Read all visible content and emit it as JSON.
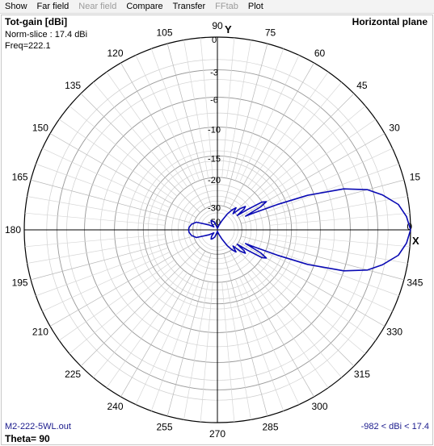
{
  "menu": [
    {
      "label": "Show",
      "enabled": true
    },
    {
      "label": "Far field",
      "enabled": true
    },
    {
      "label": "Near field",
      "enabled": false
    },
    {
      "label": "Compare",
      "enabled": true
    },
    {
      "label": "Transfer",
      "enabled": true
    },
    {
      "label": "FFtab",
      "enabled": false
    },
    {
      "label": "Plot",
      "enabled": true
    }
  ],
  "header": {
    "title": "Tot-gain [dBi]",
    "norm": "Norm-slice : 17.4 dBi",
    "freq": "Freq=222.1",
    "plane": "Horizontal plane"
  },
  "footer": {
    "file": "M2-222-5WL.out",
    "theta": "Theta= 90",
    "range": "-982 < dBi < 17.4"
  },
  "axes": {
    "y_label": "Y",
    "x_label": "X"
  },
  "colors": {
    "pattern": "#0a0ab4",
    "grid": "#b4b4b4",
    "axis": "#000000",
    "text_blue": "#1a1a8c"
  },
  "chart_data": {
    "type": "polar",
    "angle_labels": [
      "0",
      "15",
      "30",
      "45",
      "60",
      "75",
      "90",
      "105",
      "120",
      "135",
      "150",
      "165",
      "180",
      "195",
      "210",
      "225",
      "240",
      "255",
      "270",
      "285",
      "300",
      "315",
      "330",
      "345"
    ],
    "ring_labels": [
      "0",
      "-3",
      "-6",
      "-10",
      "-15",
      "-20",
      "-30",
      "-50"
    ],
    "ring_values_db": [
      0,
      -3,
      -6,
      -10,
      -15,
      -20,
      -30,
      -50
    ],
    "rlim_db": [
      -50,
      0
    ],
    "series": [
      {
        "points_deg_db": [
          [
            0,
            0
          ],
          [
            4,
            -0.3
          ],
          [
            8,
            -0.9
          ],
          [
            12,
            -2.2
          ],
          [
            15,
            -3.5
          ],
          [
            18,
            -6
          ],
          [
            21,
            -11
          ],
          [
            23,
            -17
          ],
          [
            25,
            -24
          ],
          [
            26,
            -27
          ],
          [
            28,
            -21
          ],
          [
            30,
            -19
          ],
          [
            32,
            -20
          ],
          [
            34,
            -25
          ],
          [
            36,
            -30
          ],
          [
            38,
            -26
          ],
          [
            40,
            -25
          ],
          [
            43,
            -27
          ],
          [
            46,
            -31
          ],
          [
            50,
            -28
          ],
          [
            54,
            -30
          ],
          [
            58,
            -33
          ],
          [
            64,
            -39
          ],
          [
            72,
            -44
          ],
          [
            82,
            -47
          ],
          [
            90,
            -48
          ],
          [
            100,
            -46
          ],
          [
            110,
            -41
          ],
          [
            118,
            -39
          ],
          [
            124,
            -38
          ],
          [
            132,
            -40
          ],
          [
            140,
            -44
          ],
          [
            150,
            -39
          ],
          [
            160,
            -31
          ],
          [
            168,
            -29
          ],
          [
            175,
            -28.2
          ],
          [
            180,
            -28
          ],
          [
            185,
            -28.2
          ],
          [
            192,
            -29
          ],
          [
            200,
            -31
          ],
          [
            210,
            -39
          ],
          [
            220,
            -44
          ],
          [
            228,
            -40
          ],
          [
            236,
            -38
          ],
          [
            242,
            -39
          ],
          [
            250,
            -41
          ],
          [
            260,
            -46
          ],
          [
            270,
            -48
          ],
          [
            278,
            -47
          ],
          [
            288,
            -44
          ],
          [
            296,
            -39
          ],
          [
            302,
            -33
          ],
          [
            306,
            -30
          ],
          [
            310,
            -28
          ],
          [
            314,
            -31
          ],
          [
            317,
            -27
          ],
          [
            320,
            -25
          ],
          [
            322,
            -26
          ],
          [
            324,
            -30
          ],
          [
            326,
            -25
          ],
          [
            328,
            -20
          ],
          [
            330,
            -19
          ],
          [
            332,
            -21
          ],
          [
            334,
            -27
          ],
          [
            335,
            -24
          ],
          [
            337,
            -17
          ],
          [
            339,
            -11
          ],
          [
            342,
            -6
          ],
          [
            345,
            -3.5
          ],
          [
            348,
            -2.2
          ],
          [
            352,
            -0.9
          ],
          [
            356,
            -0.3
          ],
          [
            360,
            0
          ]
        ]
      }
    ]
  }
}
